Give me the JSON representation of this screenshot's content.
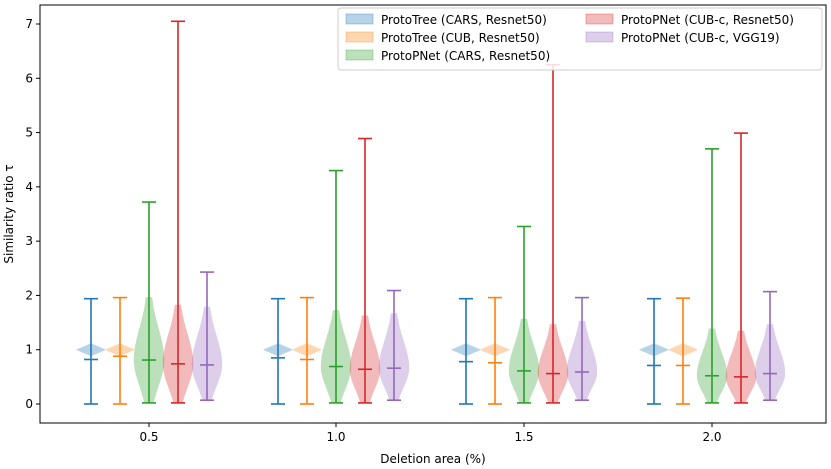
{
  "chart_data": {
    "type": "violin",
    "title": "",
    "xlabel": "Deletion area (%)",
    "ylabel": "Similarity ratio τ",
    "categories": [
      "0.5",
      "1.0",
      "1.5",
      "2.0"
    ],
    "ylim": [
      -0.35,
      7.35
    ],
    "yticks": [
      0,
      1,
      2,
      3,
      4,
      5,
      6,
      7
    ],
    "legend_position": "top-right",
    "series": [
      {
        "name": "ProtoTree (CARS, Resnet50)",
        "color": "#1f77b4",
        "stats": [
          {
            "min": 0.0,
            "median": 0.82,
            "max": 1.94
          },
          {
            "min": 0.0,
            "median": 0.85,
            "max": 1.94
          },
          {
            "min": 0.0,
            "median": 0.78,
            "max": 1.94
          },
          {
            "min": 0.0,
            "median": 0.71,
            "max": 1.94
          }
        ],
        "shape": "diamond"
      },
      {
        "name": "ProtoTree (CUB, Resnet50)",
        "color": "#ff7f0e",
        "stats": [
          {
            "min": 0.0,
            "median": 0.88,
            "max": 1.96
          },
          {
            "min": 0.0,
            "median": 0.82,
            "max": 1.96
          },
          {
            "min": 0.0,
            "median": 0.76,
            "max": 1.96
          },
          {
            "min": 0.0,
            "median": 0.71,
            "max": 1.95
          }
        ],
        "shape": "diamond"
      },
      {
        "name": "ProtoPNet (CARS, Resnet50)",
        "color": "#2ca02c",
        "stats": [
          {
            "min": 0.02,
            "median": 0.81,
            "max": 3.72
          },
          {
            "min": 0.02,
            "median": 0.69,
            "max": 4.3
          },
          {
            "min": 0.02,
            "median": 0.61,
            "max": 3.27
          },
          {
            "min": 0.02,
            "median": 0.52,
            "max": 4.7
          }
        ],
        "shape": "body"
      },
      {
        "name": "ProtoPNet (CUB-c, Resnet50)",
        "color": "#d62728",
        "stats": [
          {
            "min": 0.02,
            "median": 0.74,
            "max": 7.05
          },
          {
            "min": 0.02,
            "median": 0.64,
            "max": 4.89
          },
          {
            "min": 0.02,
            "median": 0.56,
            "max": 6.25
          },
          {
            "min": 0.02,
            "median": 0.5,
            "max": 4.99
          }
        ],
        "shape": "body"
      },
      {
        "name": "ProtoPNet (CUB-c, VGG19)",
        "color": "#9467bd",
        "stats": [
          {
            "min": 0.07,
            "median": 0.72,
            "max": 2.43
          },
          {
            "min": 0.07,
            "median": 0.66,
            "max": 2.09
          },
          {
            "min": 0.07,
            "median": 0.59,
            "max": 1.96
          },
          {
            "min": 0.07,
            "median": 0.56,
            "max": 2.07
          }
        ],
        "shape": "body"
      }
    ]
  }
}
